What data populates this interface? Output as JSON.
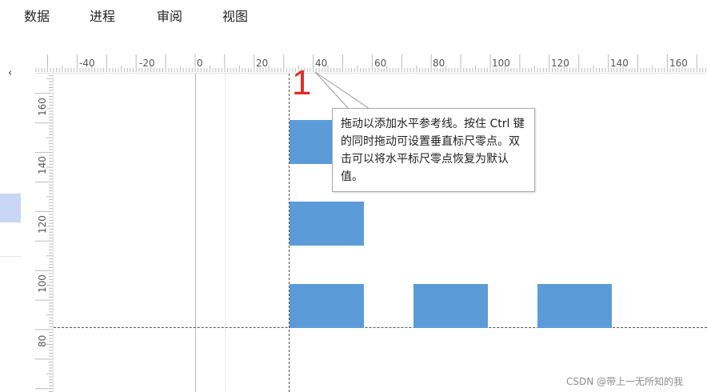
{
  "menu": [
    "数据",
    "进程",
    "审阅",
    "视图"
  ],
  "side_arrow": "‹",
  "hruler_ticks": [
    "-40",
    "-20",
    "0",
    "20",
    "40",
    "60",
    "80",
    "100",
    "120",
    "140",
    "160"
  ],
  "vruler_ticks": [
    "160",
    "140",
    "120",
    "100",
    "80"
  ],
  "marker": "1",
  "tooltip": "拖动以添加水平参考线。按住 Ctrl 键的同时拖动可设置垂直标尺零点。双击可以将水平标尺零点恢复为默认值。",
  "watermark": "CSDN @带上一无所知的我",
  "shape_color": "#5b9bd8",
  "marker_color": "#e12a21"
}
